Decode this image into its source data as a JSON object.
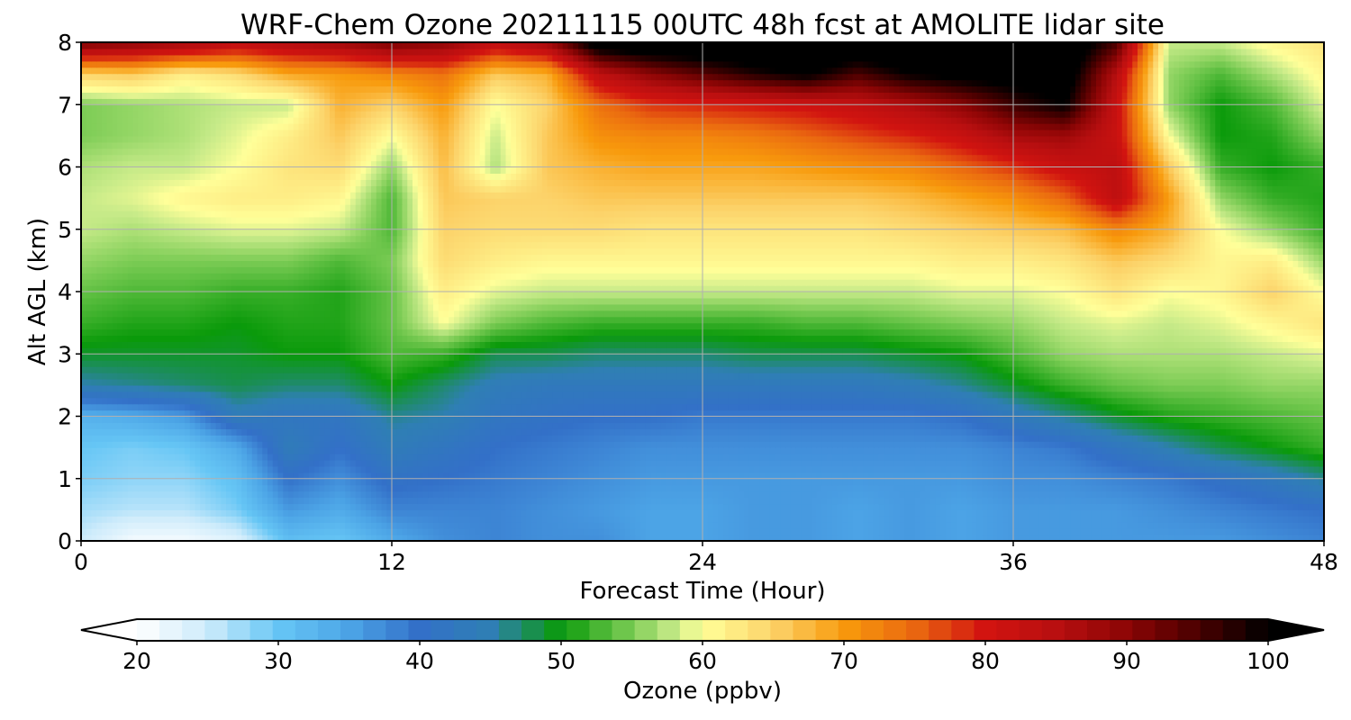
{
  "chart_data": {
    "type": "heatmap",
    "title": "WRF-Chem Ozone  20211115 00UTC 48h fcst at AMOLITE lidar site",
    "xlabel": "Forecast Time (Hour)",
    "ylabel": "Alt AGL (km)",
    "xlim": [
      0,
      48
    ],
    "ylim": [
      0,
      8
    ],
    "x_ticks": [
      "0",
      "12",
      "24",
      "36",
      "48"
    ],
    "y_ticks": [
      "0",
      "1",
      "2",
      "3",
      "4",
      "5",
      "6",
      "7",
      "8"
    ],
    "grid": true,
    "x": [
      0,
      2,
      4,
      6,
      8,
      10,
      12,
      14,
      16,
      18,
      20,
      22,
      24,
      26,
      28,
      30,
      32,
      34,
      36,
      38,
      40,
      42,
      44,
      46,
      48
    ],
    "y": [
      0,
      0.5,
      1,
      1.5,
      2,
      2.5,
      3,
      3.5,
      4,
      4.5,
      5,
      5.5,
      6,
      6.5,
      7,
      7.5,
      8
    ],
    "z_unit": "ppbv",
    "z": [
      [
        25,
        21,
        21,
        23,
        31,
        30,
        34,
        37,
        38,
        37,
        37,
        35,
        35,
        36,
        36,
        35,
        36,
        35,
        36,
        36,
        36,
        36,
        36,
        37,
        38
      ],
      [
        27,
        26,
        26,
        29,
        36,
        34,
        38,
        38,
        38,
        37,
        36,
        35,
        35,
        36,
        36,
        35,
        36,
        35,
        36,
        36,
        36,
        37,
        38,
        39,
        40
      ],
      [
        29,
        28,
        28,
        31,
        40,
        37,
        41,
        40,
        39,
        38,
        37,
        36,
        36,
        36,
        36,
        36,
        36,
        36,
        37,
        37,
        38,
        39,
        41,
        43,
        46
      ],
      [
        30,
        29,
        30,
        34,
        44,
        40,
        44,
        42,
        40,
        39,
        38,
        37,
        37,
        37,
        37,
        37,
        37,
        37,
        38,
        39,
        42,
        45,
        48,
        50,
        52
      ],
      [
        33,
        34,
        36,
        44,
        42,
        42,
        46,
        45,
        42,
        41,
        40,
        40,
        39,
        39,
        39,
        39,
        39,
        40,
        43,
        46,
        49,
        51,
        52,
        53,
        54
      ],
      [
        45,
        46,
        47,
        48,
        47,
        47,
        50,
        47,
        44,
        43,
        43,
        43,
        43,
        43,
        43,
        43,
        44,
        46,
        49,
        52,
        54,
        55,
        55,
        56,
        56
      ],
      [
        49,
        49,
        49,
        49,
        50,
        50,
        53,
        52,
        48,
        48,
        47,
        47,
        47,
        48,
        48,
        48,
        49,
        50,
        53,
        56,
        57,
        57,
        57,
        58,
        59
      ],
      [
        52,
        51,
        51,
        50,
        51,
        51,
        54,
        60,
        55,
        53,
        52,
        52,
        52,
        52,
        53,
        53,
        54,
        55,
        56,
        58,
        59,
        58,
        59,
        61,
        63
      ],
      [
        54,
        53,
        53,
        52,
        52,
        51,
        54,
        62,
        59,
        58,
        58,
        58,
        58,
        58,
        58,
        58,
        58,
        59,
        59,
        60,
        63,
        60,
        61,
        65,
        60
      ],
      [
        56,
        55,
        55,
        55,
        55,
        53,
        55,
        64,
        62,
        61,
        61,
        61,
        61,
        61,
        61,
        61,
        61,
        62,
        62,
        63,
        66,
        64,
        61,
        62,
        56
      ],
      [
        58,
        57,
        58,
        59,
        59,
        58,
        53,
        65,
        64,
        64,
        64,
        63,
        63,
        63,
        63,
        63,
        64,
        65,
        66,
        67,
        72,
        68,
        60,
        56,
        52
      ],
      [
        58,
        59,
        61,
        62,
        62,
        61,
        53,
        66,
        65,
        65,
        66,
        66,
        66,
        66,
        66,
        66,
        67,
        69,
        71,
        75,
        84,
        70,
        56,
        52,
        51
      ],
      [
        57,
        58,
        58,
        60,
        63,
        64,
        56,
        67,
        57,
        66,
        68,
        69,
        69,
        69,
        70,
        71,
        72,
        75,
        78,
        82,
        84,
        66,
        52,
        50,
        52
      ],
      [
        55,
        56,
        57,
        59,
        62,
        66,
        60,
        68,
        58,
        66,
        71,
        72,
        72,
        73,
        75,
        77,
        79,
        82,
        87,
        88,
        82,
        60,
        50,
        51,
        56
      ],
      [
        55,
        56,
        57,
        58,
        58,
        68,
        65,
        70,
        60,
        65,
        74,
        78,
        79,
        80,
        81,
        83,
        86,
        90,
        96,
        100,
        82,
        56,
        50,
        53,
        59
      ],
      [
        65,
        66,
        62,
        64,
        69,
        70,
        72,
        74,
        66,
        68,
        84,
        90,
        94,
        98,
        101,
        95,
        100,
        102,
        103,
        104,
        85,
        56,
        53,
        57,
        61
      ],
      [
        92,
        90,
        88,
        84,
        86,
        88,
        92,
        90,
        84,
        88,
        104,
        106,
        106,
        106,
        106,
        106,
        106,
        106,
        106,
        106,
        95,
        58,
        58,
        61,
        63
      ]
    ],
    "colorbar": {
      "label": "Ozone  (ppbv)",
      "min": 20,
      "max": 100,
      "ticks": [
        "20",
        "30",
        "40",
        "50",
        "60",
        "70",
        "80",
        "90",
        "100"
      ],
      "extend": "both",
      "colors": [
        [
          20,
          "#ffffff"
        ],
        [
          25,
          "#cdebfb"
        ],
        [
          30,
          "#66c6f5"
        ],
        [
          35,
          "#4ca4e6"
        ],
        [
          40,
          "#3370c8"
        ],
        [
          45,
          "#2f7fb4"
        ],
        [
          50,
          "#0a9a0a"
        ],
        [
          55,
          "#7ccc55"
        ],
        [
          58,
          "#c6ea88"
        ],
        [
          60,
          "#ffff99"
        ],
        [
          65,
          "#fcd36a"
        ],
        [
          70,
          "#f89a0c"
        ],
        [
          75,
          "#ea6810"
        ],
        [
          80,
          "#d21410"
        ],
        [
          85,
          "#b80f10"
        ],
        [
          90,
          "#8c0505"
        ],
        [
          95,
          "#4a0000"
        ],
        [
          100,
          "#000000"
        ]
      ]
    }
  }
}
